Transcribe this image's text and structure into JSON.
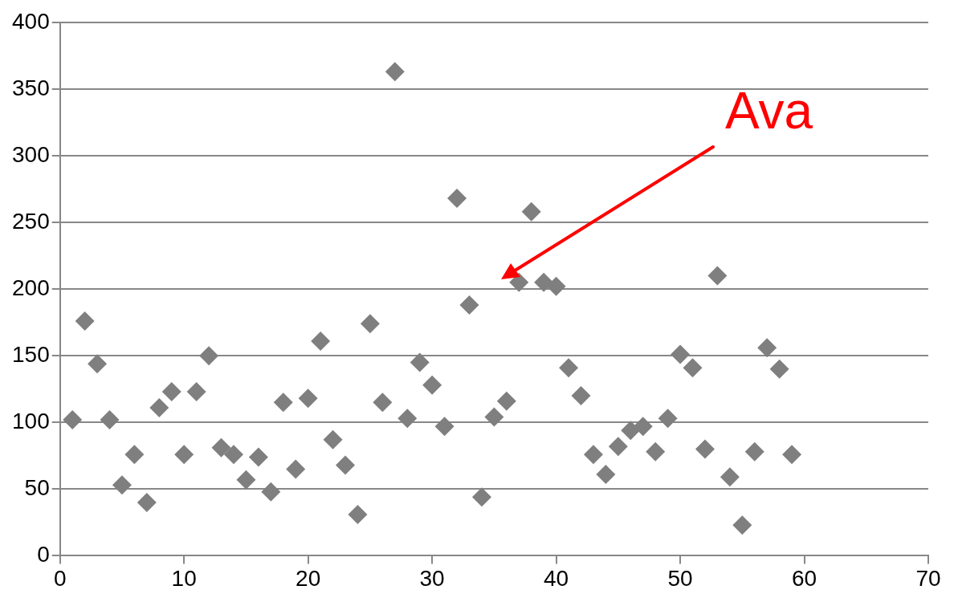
{
  "chart_data": {
    "type": "scatter",
    "x": [
      1,
      2,
      3,
      4,
      5,
      6,
      7,
      8,
      9,
      10,
      11,
      12,
      13,
      14,
      15,
      16,
      17,
      18,
      19,
      20,
      21,
      22,
      23,
      24,
      25,
      26,
      27,
      28,
      29,
      30,
      31,
      32,
      33,
      34,
      35,
      36,
      37,
      38,
      39,
      40,
      41,
      42,
      43,
      44,
      45,
      46,
      47,
      48,
      49,
      50,
      51,
      52,
      53,
      54,
      55,
      56,
      57,
      58,
      59
    ],
    "series": [
      {
        "color": "#7f7f7f",
        "values": [
          102,
          176,
          144,
          102,
          53,
          76,
          40,
          111,
          123,
          76,
          123,
          150,
          81,
          76,
          57,
          74,
          48,
          115,
          65,
          118,
          161,
          87,
          68,
          31,
          174,
          115,
          363,
          103,
          145,
          128,
          97,
          268,
          188,
          44,
          104,
          116,
          205,
          258,
          205,
          202,
          141,
          120,
          76,
          61,
          82,
          94,
          97,
          78,
          103,
          151,
          141,
          80,
          210,
          59,
          23,
          78,
          156,
          140,
          76
        ]
      }
    ],
    "xlim": [
      0,
      70
    ],
    "xticks": [
      0,
      10,
      20,
      30,
      40,
      50,
      60,
      70
    ],
    "ylim": [
      0,
      400
    ],
    "yticks": [
      0,
      50,
      100,
      150,
      200,
      250,
      300,
      350,
      400
    ],
    "grid": "y",
    "legend": false,
    "marker": "diamond",
    "annotations": [
      "Ava"
    ]
  }
}
